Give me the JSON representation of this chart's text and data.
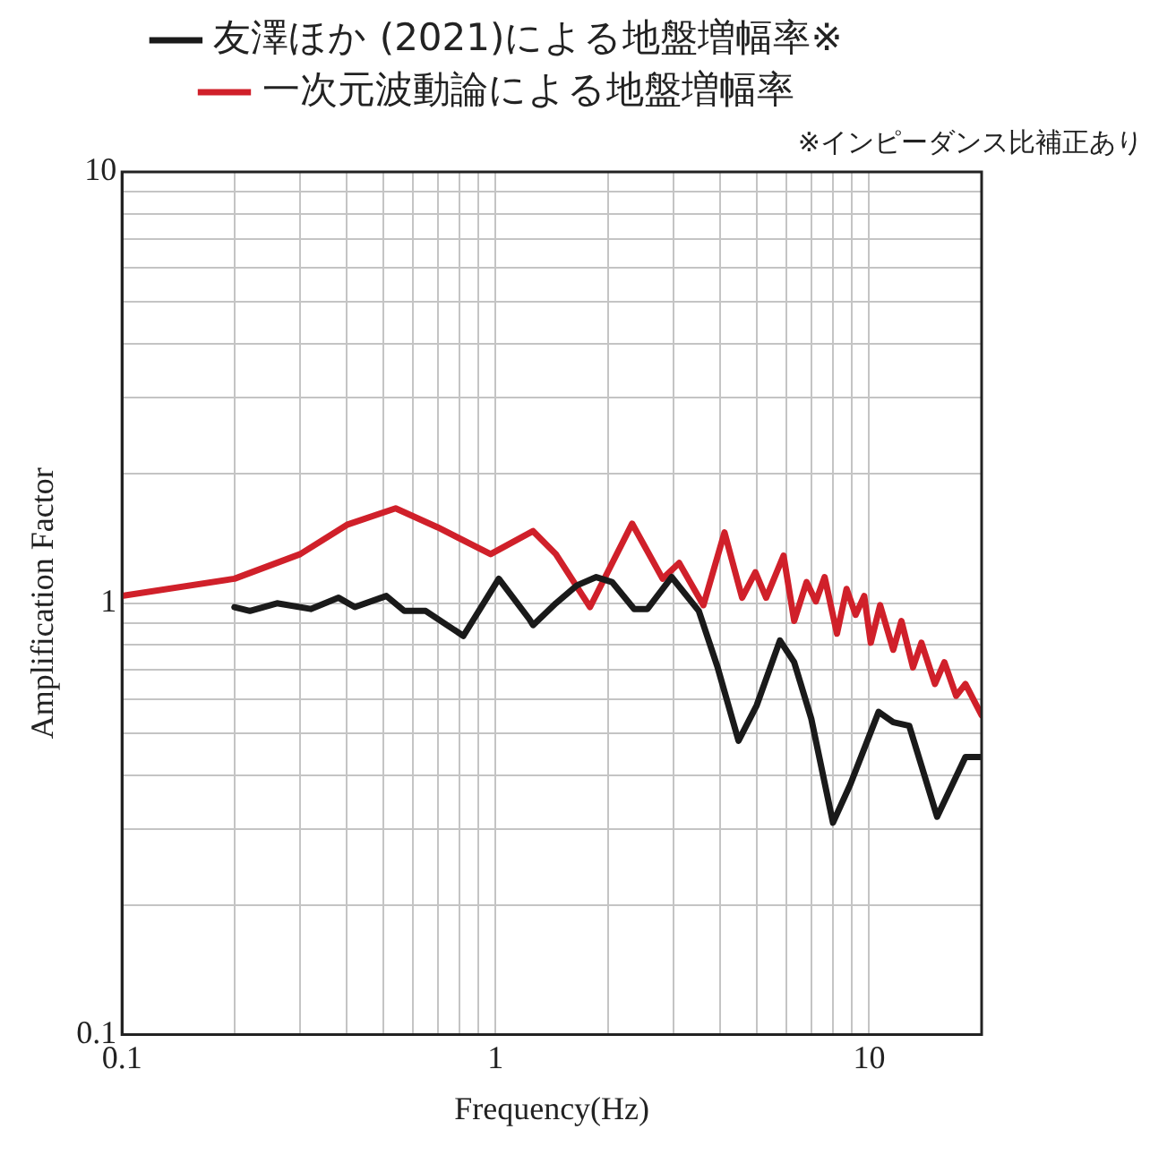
{
  "chart_data": {
    "type": "line",
    "xlabel": "Frequency(Hz)",
    "ylabel": "Amplification Factor",
    "annotations": [
      "※インピーダンス比補正あり"
    ],
    "log": "xy",
    "grid": true,
    "legend": "top",
    "marker": "none",
    "line_style": "solid",
    "xlim": [
      0.1,
      20
    ],
    "ylim": [
      0.1,
      10
    ],
    "xticks": [
      0.1,
      {
        "value": 0.2,
        "label": null
      },
      {
        "value": 0.3,
        "label": null
      },
      {
        "value": 0.4,
        "label": null
      },
      {
        "value": 0.5,
        "label": null
      },
      {
        "value": 0.6,
        "label": null
      },
      {
        "value": 0.7,
        "label": null
      },
      {
        "value": 0.8,
        "label": null
      },
      {
        "value": 0.9,
        "label": null
      },
      1,
      {
        "value": 2,
        "label": null
      },
      {
        "value": 3,
        "label": null
      },
      {
        "value": 4,
        "label": null
      },
      {
        "value": 5,
        "label": null
      },
      {
        "value": 6,
        "label": null
      },
      {
        "value": 7,
        "label": null
      },
      {
        "value": 8,
        "label": null
      },
      {
        "value": 9,
        "label": null
      },
      10
    ],
    "yticks": [
      0.1,
      {
        "value": 0.2,
        "label": null
      },
      {
        "value": 0.3,
        "label": null
      },
      {
        "value": 0.4,
        "label": null
      },
      {
        "value": 0.5,
        "label": null
      },
      {
        "value": 0.6,
        "label": null
      },
      {
        "value": 0.7,
        "label": null
      },
      {
        "value": 0.8,
        "label": null
      },
      {
        "value": 0.9,
        "label": null
      },
      1,
      {
        "value": 2,
        "label": null
      },
      {
        "value": 3,
        "label": null
      },
      {
        "value": 4,
        "label": null
      },
      {
        "value": 5,
        "label": null
      },
      {
        "value": 6,
        "label": null
      },
      {
        "value": 7,
        "label": null
      },
      {
        "value": 8,
        "label": null
      },
      {
        "value": 9,
        "label": null
      },
      10
    ],
    "series": [
      {
        "name": "友澤ほか (2021)による地盤増幅率※",
        "color": "#1a1a1a",
        "x": [
          0.2,
          0.22,
          0.26,
          0.32,
          0.38,
          0.42,
          0.51,
          0.57,
          0.65,
          0.82,
          1.02,
          1.23,
          1.26,
          1.45,
          1.65,
          1.86,
          2.05,
          2.35,
          2.55,
          2.96,
          3.5,
          3.93,
          4.47,
          5.0,
          5.77,
          6.3,
          7.0,
          8.0,
          8.9,
          10.6,
          11.6,
          12.8,
          15.2,
          18.1,
          19.0,
          20
        ],
        "values": [
          0.98,
          0.96,
          1.0,
          0.97,
          1.03,
          0.98,
          1.04,
          0.96,
          0.96,
          0.84,
          1.14,
          0.92,
          0.89,
          1.0,
          1.1,
          1.15,
          1.12,
          0.97,
          0.97,
          1.15,
          0.96,
          0.71,
          0.48,
          0.58,
          0.82,
          0.73,
          0.54,
          0.31,
          0.38,
          0.56,
          0.53,
          0.52,
          0.32,
          0.44,
          0.44,
          0.44
        ]
      },
      {
        "name": "一次元波動論による地盤増幅率",
        "color": "#d0202a",
        "x": [
          0.1,
          0.2,
          0.3,
          0.4,
          0.54,
          0.7,
          0.97,
          1.26,
          1.45,
          1.79,
          2.32,
          2.8,
          3.1,
          3.6,
          4.1,
          4.57,
          4.96,
          5.3,
          5.9,
          6.3,
          6.8,
          7.2,
          7.6,
          8.2,
          8.7,
          9.2,
          9.7,
          10.1,
          10.7,
          11.6,
          12.2,
          13.1,
          13.8,
          15.0,
          15.9,
          17.1,
          18.1,
          20
        ],
        "values": [
          1.04,
          1.14,
          1.3,
          1.52,
          1.66,
          1.5,
          1.3,
          1.47,
          1.3,
          0.98,
          1.53,
          1.14,
          1.24,
          0.99,
          1.46,
          1.03,
          1.18,
          1.03,
          1.29,
          0.91,
          1.12,
          1.01,
          1.15,
          0.85,
          1.08,
          0.94,
          1.04,
          0.81,
          0.99,
          0.78,
          0.91,
          0.71,
          0.81,
          0.65,
          0.73,
          0.61,
          0.65,
          0.55
        ]
      }
    ]
  }
}
